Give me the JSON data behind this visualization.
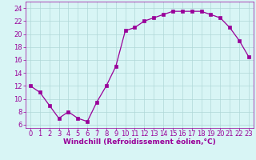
{
  "x": [
    0,
    1,
    2,
    3,
    4,
    5,
    6,
    7,
    8,
    9,
    10,
    11,
    12,
    13,
    14,
    15,
    16,
    17,
    18,
    19,
    20,
    21,
    22,
    23
  ],
  "y": [
    12,
    11,
    9,
    7,
    8,
    7,
    6.5,
    9.5,
    12,
    15,
    20.5,
    21,
    22,
    22.5,
    23,
    23.5,
    23.5,
    23.5,
    23.5,
    23,
    22.5,
    21,
    19,
    16.5
  ],
  "line_color": "#990099",
  "marker": "s",
  "marker_size": 2.5,
  "bg_color": "#d8f5f5",
  "grid_color": "#b0d8d8",
  "xlabel": "Windchill (Refroidissement éolien,°C)",
  "xlabel_color": "#990099",
  "xlabel_fontsize": 6.5,
  "tick_color": "#990099",
  "tick_fontsize": 6.0,
  "ylim": [
    5.5,
    25
  ],
  "yticks": [
    6,
    8,
    10,
    12,
    14,
    16,
    18,
    20,
    22,
    24
  ],
  "xlim": [
    -0.5,
    23.5
  ],
  "xticks": [
    0,
    1,
    2,
    3,
    4,
    5,
    6,
    7,
    8,
    9,
    10,
    11,
    12,
    13,
    14,
    15,
    16,
    17,
    18,
    19,
    20,
    21,
    22,
    23
  ]
}
